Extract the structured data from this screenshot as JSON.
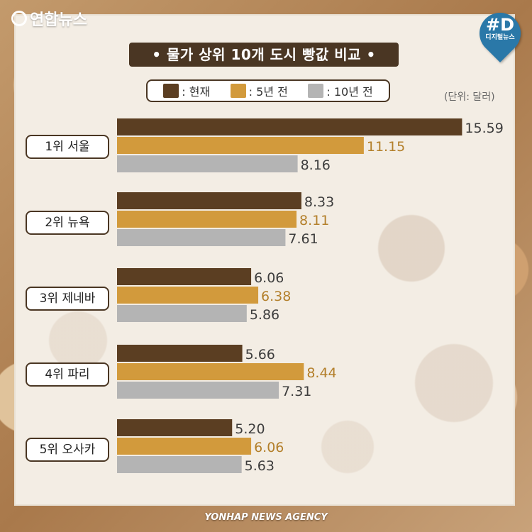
{
  "logo": {
    "text": "연합뉴스",
    "icon": "yonhap-logo-icon"
  },
  "badge": {
    "text": "#D",
    "subtext": "디지털뉴스",
    "color": "#2a78a8"
  },
  "footer": {
    "text": "YONHAP NEWS AGENCY"
  },
  "chart_data": {
    "type": "bar",
    "orientation": "horizontal",
    "title": "• 물가 상위 10개 도시 빵값 비교 •",
    "unit_label": "(단위: 달러)",
    "categories": [
      "1위 서울",
      "2위 뉴욕",
      "3위 제네바",
      "4위 파리",
      "5위 오사카"
    ],
    "series": [
      {
        "name": "현재",
        "legend_label": ": 현재",
        "color": "#5b3e22",
        "label_color": "#3d3d3d",
        "values": [
          15.59,
          8.33,
          6.06,
          5.66,
          5.2
        ],
        "labels": [
          "15.59",
          "8.33",
          "6.06",
          "5.66",
          "5.20"
        ]
      },
      {
        "name": "5년 전",
        "legend_label": ": 5년 전",
        "color": "#d29a3c",
        "label_color": "#b37f2a",
        "values": [
          11.15,
          8.11,
          6.38,
          8.44,
          6.06
        ],
        "labels": [
          "11.15",
          "8.11",
          "6.38",
          "8.44",
          "6.06"
        ]
      },
      {
        "name": "10년 전",
        "legend_label": ": 10년 전",
        "color": "#b4b4b4",
        "label_color": "#3d3d3d",
        "values": [
          8.16,
          7.61,
          5.86,
          7.31,
          5.63
        ],
        "labels": [
          "8.16",
          "7.61",
          "5.86",
          "7.31",
          "5.63"
        ]
      }
    ],
    "xlim": [
      0,
      16
    ],
    "grid": false,
    "legend_position": "top"
  }
}
